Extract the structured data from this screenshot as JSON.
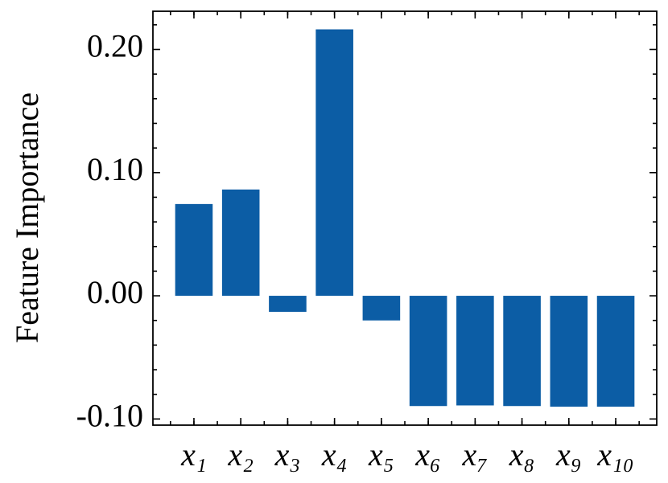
{
  "chart_data": {
    "type": "bar",
    "y_label": "Feature Importance",
    "categories": [
      "x₁",
      "x₂",
      "x₃",
      "x₄",
      "x₅",
      "x₆",
      "x₇",
      "x₈",
      "x₉",
      "x₁₀"
    ],
    "values": [
      0.0745,
      0.0863,
      -0.013,
      0.2163,
      -0.02,
      -0.0895,
      -0.089,
      -0.0895,
      -0.09,
      -0.09
    ],
    "color": "#0C5DA5",
    "ylim": [
      -0.105,
      0.231
    ],
    "yticks": [
      {
        "value": -0.1,
        "label": "-0.10"
      },
      {
        "value": 0,
        "label": "0.00"
      },
      {
        "value": 0.1,
        "label": "0.10"
      },
      {
        "value": 0.2,
        "label": "0.20"
      }
    ],
    "grid": false
  }
}
